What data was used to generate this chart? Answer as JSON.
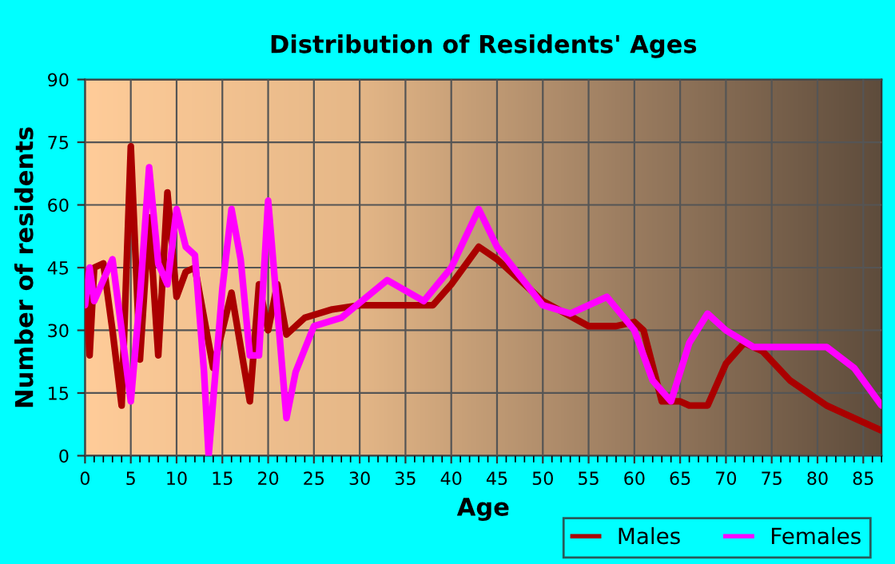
{
  "chart_data": {
    "type": "line",
    "title": "Distribution of Residents' Ages",
    "xlabel": "Age",
    "ylabel": "Number of residents",
    "xlim": [
      0,
      87
    ],
    "xticks": [
      0,
      5,
      10,
      15,
      20,
      25,
      30,
      35,
      40,
      45,
      50,
      55,
      60,
      65,
      70,
      75,
      80,
      85
    ],
    "ylim": [
      0,
      90
    ],
    "yticks": [
      0,
      15,
      30,
      45,
      60,
      75,
      90
    ],
    "grid": true,
    "legend": "bottom right",
    "marker": "none",
    "line_style": "solid",
    "series": [
      {
        "name": "Males",
        "color": "#aa0000",
        "x": [
          0,
          0.5,
          1,
          2,
          3,
          4,
          5,
          6,
          7,
          8,
          9,
          10,
          11,
          12,
          14,
          16,
          18,
          19,
          20,
          21,
          22,
          24,
          27,
          30,
          35,
          38,
          40,
          43,
          45,
          50,
          55,
          58,
          60,
          61,
          63,
          65,
          66,
          68,
          70,
          72,
          74,
          77,
          81,
          87
        ],
        "values": [
          44,
          24,
          45,
          46,
          30,
          12,
          74,
          23,
          57,
          24,
          63,
          38,
          44,
          45,
          21,
          39,
          13,
          41,
          30,
          41,
          29,
          33,
          35,
          36,
          36,
          36,
          41,
          50,
          47,
          37,
          31,
          31,
          32,
          30,
          13,
          13,
          12,
          12,
          22,
          27,
          25,
          18,
          12,
          6
        ]
      },
      {
        "name": "Females",
        "color": "#ff00ff",
        "x": [
          0,
          0.5,
          1,
          2,
          3,
          4,
          5,
          6,
          7,
          8,
          9,
          10,
          11,
          12,
          13,
          13.5,
          15,
          16,
          17,
          18,
          19,
          20,
          21,
          22,
          23,
          25,
          28,
          33,
          37,
          40,
          43,
          45,
          50,
          53,
          57,
          60,
          62,
          64,
          66,
          68,
          70,
          73,
          76,
          81,
          84,
          87
        ],
        "values": [
          36,
          45,
          37,
          42,
          47,
          30,
          13,
          38,
          69,
          46,
          41,
          59,
          50,
          48,
          20,
          0,
          40,
          59,
          47,
          24,
          24,
          61,
          35,
          9,
          20,
          31,
          33,
          42,
          37,
          45,
          59,
          50,
          36,
          34,
          38,
          30,
          18,
          13,
          27,
          34,
          30,
          26,
          26,
          26,
          21,
          12
        ]
      }
    ]
  }
}
